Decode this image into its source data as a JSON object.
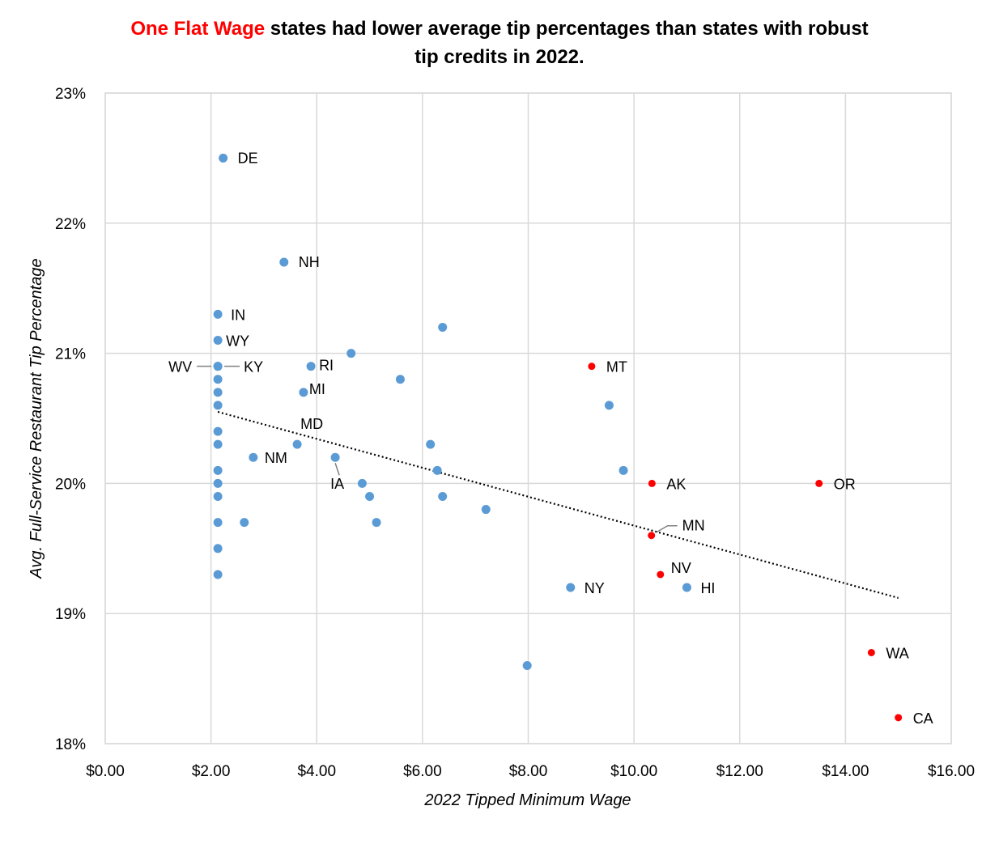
{
  "chart_data": {
    "type": "scatter",
    "title_highlight": "One Flat Wage",
    "title_rest": " states had lower average tip percentages than states with robust",
    "title_line2": "tip credits in 2022.",
    "xlabel": "2022 Tipped Minimum Wage",
    "ylabel": "Avg. Full-Service Restaurant Tip Percentage",
    "xlim": [
      0,
      16
    ],
    "ylim": [
      18,
      23
    ],
    "x_ticks": [
      "$0.00",
      "$2.00",
      "$4.00",
      "$6.00",
      "$8.00",
      "$10.00",
      "$12.00",
      "$14.00",
      "$16.00"
    ],
    "y_ticks": [
      "18%",
      "19%",
      "20%",
      "21%",
      "22%",
      "23%"
    ],
    "grid": true,
    "colors": {
      "tip_credit": "#5B9BD5",
      "one_flat_wage": "#FF0000",
      "title_highlight": "#FF0000",
      "grid": "#D9D9D9"
    },
    "trendline": {
      "style": "dotted",
      "x": [
        2.13,
        15.0
      ],
      "y": [
        20.55,
        19.12
      ]
    },
    "points": [
      {
        "x": 2.23,
        "y": 22.5,
        "label": "DE",
        "group": "tip_credit"
      },
      {
        "x": 3.38,
        "y": 21.7,
        "label": "NH",
        "group": "tip_credit"
      },
      {
        "x": 2.13,
        "y": 21.3,
        "label": "IN",
        "group": "tip_credit"
      },
      {
        "x": 2.13,
        "y": 21.1,
        "label": "WY",
        "group": "tip_credit"
      },
      {
        "x": 2.13,
        "y": 20.9,
        "label": "WV",
        "group": "tip_credit"
      },
      {
        "x": 2.13,
        "y": 20.9,
        "label": "KY",
        "group": "tip_credit"
      },
      {
        "x": 2.13,
        "y": 20.8,
        "label": "",
        "group": "tip_credit"
      },
      {
        "x": 2.13,
        "y": 20.7,
        "label": "",
        "group": "tip_credit"
      },
      {
        "x": 2.13,
        "y": 20.6,
        "label": "",
        "group": "tip_credit"
      },
      {
        "x": 2.13,
        "y": 20.4,
        "label": "",
        "group": "tip_credit"
      },
      {
        "x": 2.13,
        "y": 20.3,
        "label": "",
        "group": "tip_credit"
      },
      {
        "x": 2.13,
        "y": 20.1,
        "label": "",
        "group": "tip_credit"
      },
      {
        "x": 2.13,
        "y": 20.0,
        "label": "",
        "group": "tip_credit"
      },
      {
        "x": 2.13,
        "y": 19.9,
        "label": "",
        "group": "tip_credit"
      },
      {
        "x": 2.13,
        "y": 19.7,
        "label": "",
        "group": "tip_credit"
      },
      {
        "x": 2.13,
        "y": 19.5,
        "label": "",
        "group": "tip_credit"
      },
      {
        "x": 2.13,
        "y": 19.3,
        "label": "",
        "group": "tip_credit"
      },
      {
        "x": 2.63,
        "y": 19.7,
        "label": "",
        "group": "tip_credit"
      },
      {
        "x": 2.8,
        "y": 20.2,
        "label": "NM",
        "group": "tip_credit"
      },
      {
        "x": 3.63,
        "y": 20.3,
        "label": "MD",
        "group": "tip_credit"
      },
      {
        "x": 3.75,
        "y": 20.7,
        "label": "MI",
        "group": "tip_credit"
      },
      {
        "x": 3.89,
        "y": 20.9,
        "label": "RI",
        "group": "tip_credit"
      },
      {
        "x": 4.35,
        "y": 20.2,
        "label": "IA",
        "group": "tip_credit"
      },
      {
        "x": 4.65,
        "y": 21.0,
        "label": "",
        "group": "tip_credit"
      },
      {
        "x": 4.86,
        "y": 20.0,
        "label": "",
        "group": "tip_credit"
      },
      {
        "x": 5.0,
        "y": 19.9,
        "label": "",
        "group": "tip_credit"
      },
      {
        "x": 5.13,
        "y": 19.7,
        "label": "",
        "group": "tip_credit"
      },
      {
        "x": 5.58,
        "y": 20.8,
        "label": "",
        "group": "tip_credit"
      },
      {
        "x": 6.15,
        "y": 20.3,
        "label": "",
        "group": "tip_credit"
      },
      {
        "x": 6.28,
        "y": 20.1,
        "label": "",
        "group": "tip_credit"
      },
      {
        "x": 6.38,
        "y": 19.9,
        "label": "",
        "group": "tip_credit"
      },
      {
        "x": 6.38,
        "y": 21.2,
        "label": "",
        "group": "tip_credit"
      },
      {
        "x": 7.2,
        "y": 19.8,
        "label": "",
        "group": "tip_credit"
      },
      {
        "x": 7.98,
        "y": 18.6,
        "label": "",
        "group": "tip_credit"
      },
      {
        "x": 8.8,
        "y": 19.2,
        "label": "NY",
        "group": "tip_credit"
      },
      {
        "x": 9.53,
        "y": 20.6,
        "label": "",
        "group": "tip_credit"
      },
      {
        "x": 9.8,
        "y": 20.1,
        "label": "",
        "group": "tip_credit"
      },
      {
        "x": 11.0,
        "y": 19.2,
        "label": "HI",
        "group": "tip_credit"
      },
      {
        "x": 9.2,
        "y": 20.9,
        "label": "MT",
        "group": "one_flat_wage"
      },
      {
        "x": 10.34,
        "y": 20.0,
        "label": "AK",
        "group": "one_flat_wage"
      },
      {
        "x": 10.33,
        "y": 19.6,
        "label": "MN",
        "group": "one_flat_wage"
      },
      {
        "x": 10.5,
        "y": 19.3,
        "label": "NV",
        "group": "one_flat_wage"
      },
      {
        "x": 13.5,
        "y": 20.0,
        "label": "OR",
        "group": "one_flat_wage"
      },
      {
        "x": 14.49,
        "y": 18.7,
        "label": "WA",
        "group": "one_flat_wage"
      },
      {
        "x": 15.0,
        "y": 18.2,
        "label": "CA",
        "group": "one_flat_wage"
      }
    ]
  }
}
